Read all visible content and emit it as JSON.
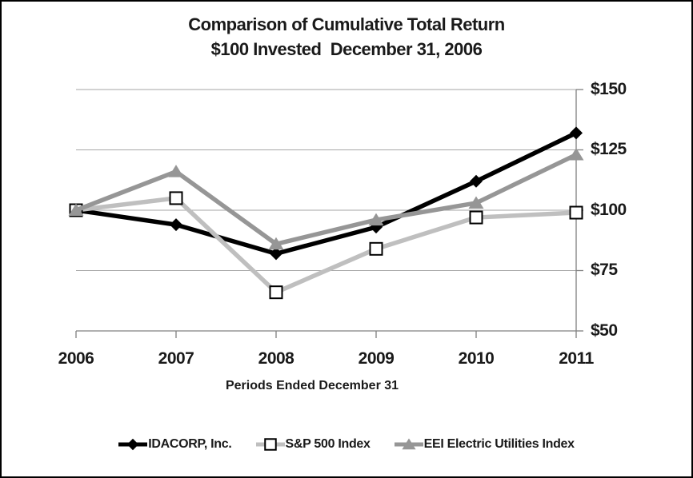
{
  "title": {
    "line1": "Comparison of Cumulative Total Return",
    "line2": "$100 Invested  December 31, 2006"
  },
  "chart_data": {
    "type": "line",
    "x": [
      2006,
      2007,
      2008,
      2009,
      2010,
      2011
    ],
    "x_tick_labels": [
      "2006",
      "2007",
      "2008",
      "2009",
      "2010",
      "2011"
    ],
    "y_tick_labels": [
      "$150",
      "$125",
      "$100",
      "$75",
      "$50"
    ],
    "y_tick_values": [
      150,
      125,
      100,
      75,
      50
    ],
    "ylim": [
      50,
      150
    ],
    "xlabel": "Periods Ended December 31",
    "grid": "horizontal",
    "legend_position": "bottom",
    "series": [
      {
        "name": "IDACORP, Inc.",
        "marker": "diamond",
        "color": "#000000",
        "values": [
          100,
          94,
          82,
          93,
          112,
          132
        ]
      },
      {
        "name": "S&P 500 Index",
        "marker": "square-open",
        "color": "#bfbfbf",
        "marker_stroke": "#000000",
        "marker_fill": "#ffffff",
        "values": [
          100,
          105,
          66,
          84,
          97,
          99
        ]
      },
      {
        "name": "EEI Electric Utilities Index",
        "marker": "triangle",
        "color": "#969696",
        "values": [
          100,
          116,
          86,
          96,
          103,
          123
        ]
      }
    ]
  },
  "style": {
    "gridline_color": "#a6a6a6",
    "axis_color": "#808080",
    "background": "#ffffff",
    "border_color": "#000000",
    "text_color": "#1a1a1a"
  }
}
